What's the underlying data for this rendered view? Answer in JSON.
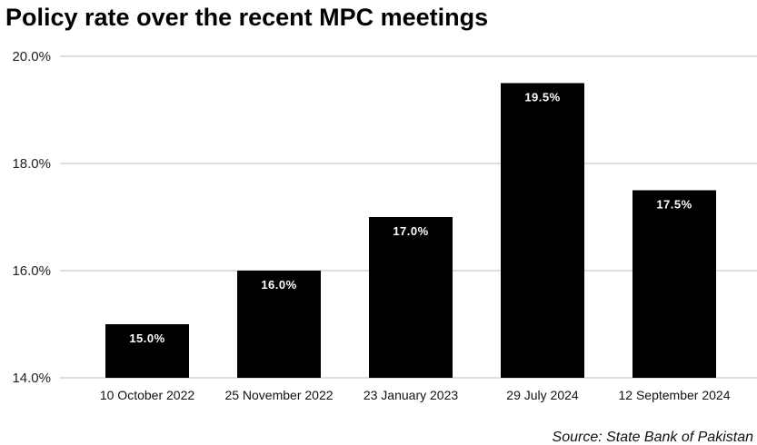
{
  "chart_data": {
    "type": "bar",
    "title": "Policy rate over the recent MPC meetings",
    "categories": [
      "10 October 2022",
      "25 November 2022",
      "23 January 2023",
      "29 July 2024",
      "12 September 2024"
    ],
    "values": [
      15.0,
      16.0,
      17.0,
      19.5,
      17.5
    ],
    "data_labels": [
      "15.0%",
      "16.0%",
      "17.0%",
      "19.5%",
      "17.5%"
    ],
    "yticks": [
      14.0,
      16.0,
      18.0,
      20.0
    ],
    "ytick_labels": [
      "14.0%",
      "16.0%",
      "18.0%",
      "20.0%"
    ],
    "ylim": [
      14,
      20
    ],
    "xlabel": "",
    "ylabel": "",
    "grid": true,
    "legend": "none",
    "bar_color": "#000000",
    "grid_color": "#cccccc",
    "source": "Source: State Bank of Pakistan"
  }
}
